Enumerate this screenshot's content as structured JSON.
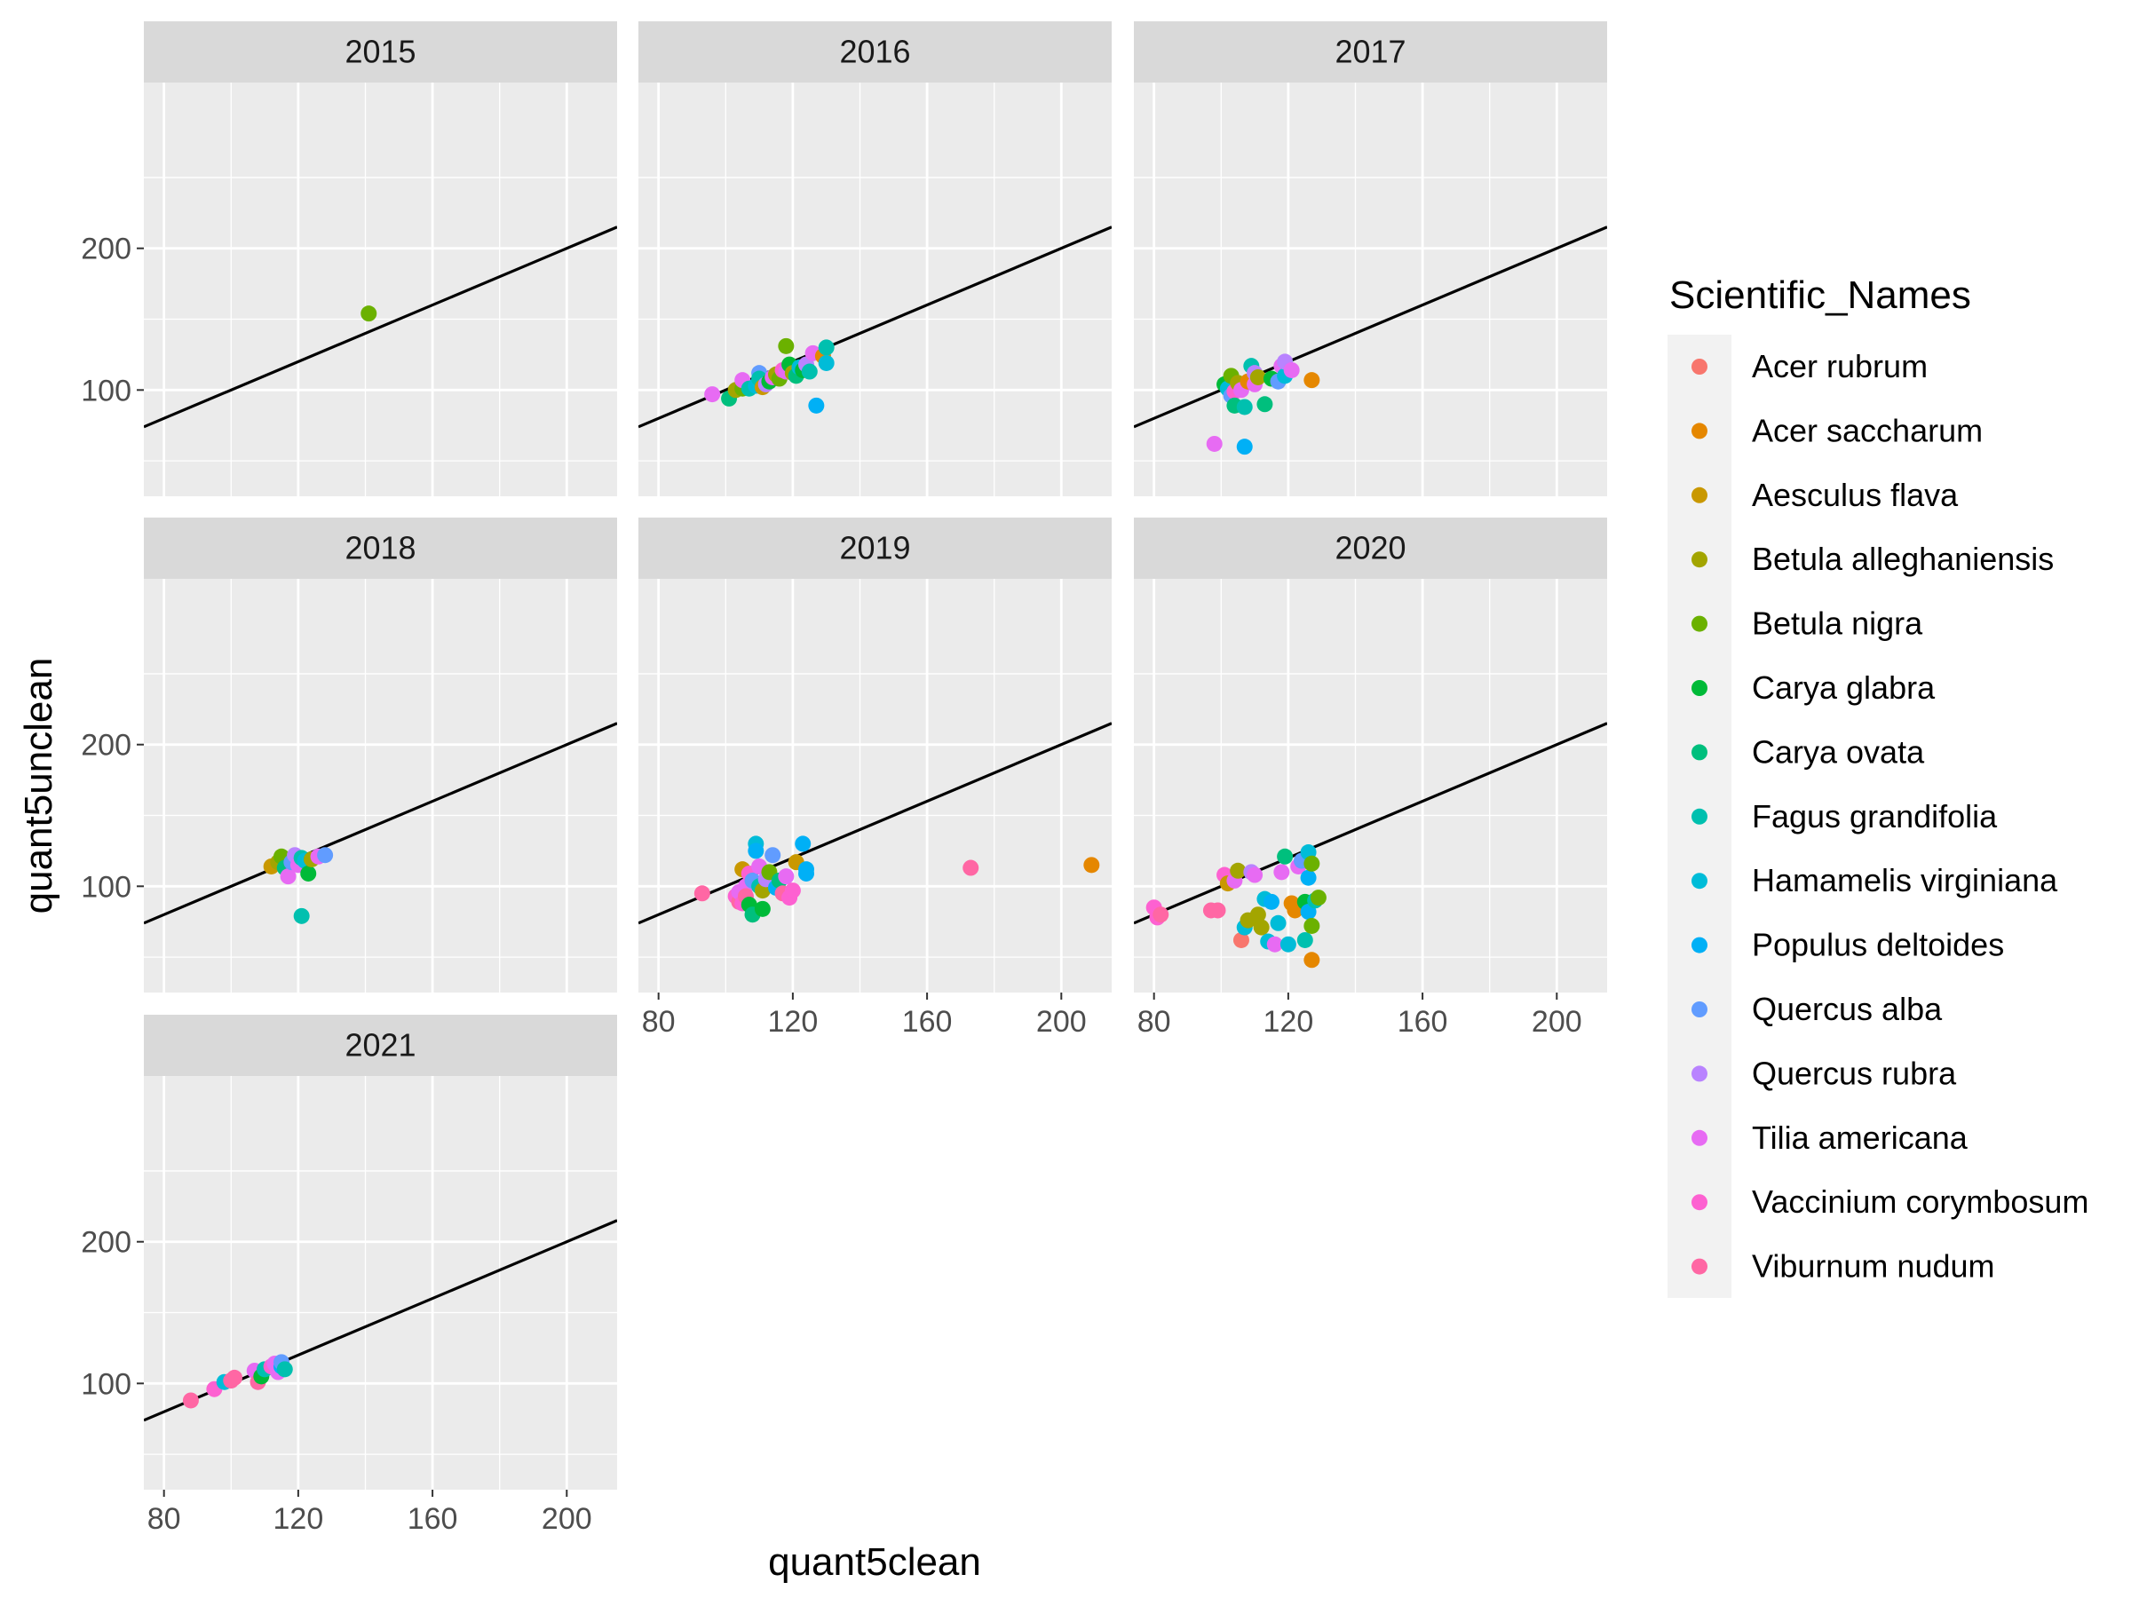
{
  "chart_data": {
    "type": "scatter",
    "facet_variable": "year",
    "panels": [
      "2015",
      "2016",
      "2017",
      "2018",
      "2019",
      "2020",
      "2021"
    ],
    "xlabel": "quant5clean",
    "ylabel": "quant5unclean",
    "xlim": [
      74,
      215
    ],
    "ylim": [
      25,
      317
    ],
    "x_ticks": [
      80,
      120,
      160,
      200
    ],
    "y_ticks": [
      100,
      200
    ],
    "grid": true,
    "reference_line": {
      "type": "identity",
      "slope": 1,
      "intercept": 0,
      "color": "#000000"
    },
    "legend": {
      "title": "Scientific_Names",
      "position": "right",
      "entries": [
        {
          "name": "Acer rubrum",
          "color": "#F8766D"
        },
        {
          "name": "Acer saccharum",
          "color": "#E58700"
        },
        {
          "name": "Aesculus flava",
          "color": "#C99800"
        },
        {
          "name": "Betula alleghaniensis",
          "color": "#A3A500"
        },
        {
          "name": "Betula nigra",
          "color": "#6BB100"
        },
        {
          "name": "Carya glabra",
          "color": "#00BA38"
        },
        {
          "name": "Carya ovata",
          "color": "#00BF7D"
        },
        {
          "name": "Fagus grandifolia",
          "color": "#00C0AF"
        },
        {
          "name": "Hamamelis virginiana",
          "color": "#00BCD8"
        },
        {
          "name": "Populus deltoides",
          "color": "#00B0F6"
        },
        {
          "name": "Quercus alba",
          "color": "#619CFF"
        },
        {
          "name": "Quercus rubra",
          "color": "#B983FF"
        },
        {
          "name": "Tilia americana",
          "color": "#E76BF3"
        },
        {
          "name": "Vaccinium corymbosum",
          "color": "#FD61D1"
        },
        {
          "name": "Viburnum nudum",
          "color": "#FF67A4"
        }
      ]
    },
    "points": {
      "2015": [
        [
          141,
          154,
          4
        ]
      ],
      "2016": [
        [
          96,
          97,
          12
        ],
        [
          101,
          94,
          6
        ],
        [
          103,
          100,
          3
        ],
        [
          105,
          101,
          4
        ],
        [
          105,
          107,
          12
        ],
        [
          107,
          101,
          7
        ],
        [
          109,
          103,
          8
        ],
        [
          110,
          112,
          10
        ],
        [
          110,
          108,
          7
        ],
        [
          111,
          102,
          2
        ],
        [
          112,
          104,
          11
        ],
        [
          113,
          106,
          5
        ],
        [
          114,
          109,
          12
        ],
        [
          115,
          111,
          3
        ],
        [
          116,
          108,
          4
        ],
        [
          117,
          114,
          13
        ],
        [
          118,
          113,
          12
        ],
        [
          118,
          131,
          4
        ],
        [
          119,
          118,
          5
        ],
        [
          120,
          112,
          3
        ],
        [
          121,
          110,
          6
        ],
        [
          122,
          116,
          8
        ],
        [
          123,
          114,
          5
        ],
        [
          124,
          118,
          11
        ],
        [
          125,
          113,
          7
        ],
        [
          126,
          126,
          12
        ],
        [
          127,
          89,
          9
        ],
        [
          129,
          124,
          1
        ],
        [
          130,
          130,
          7
        ],
        [
          130,
          119,
          8
        ]
      ],
      "2017": [
        [
          98,
          62,
          12
        ],
        [
          101,
          104,
          5
        ],
        [
          102,
          101,
          8
        ],
        [
          103,
          96,
          10
        ],
        [
          103,
          110,
          4
        ],
        [
          104,
          99,
          13
        ],
        [
          104,
          89,
          6
        ],
        [
          105,
          105,
          3
        ],
        [
          106,
          100,
          12
        ],
        [
          107,
          88,
          7
        ],
        [
          107,
          60,
          9
        ],
        [
          108,
          106,
          1
        ],
        [
          109,
          117,
          7
        ],
        [
          110,
          104,
          12
        ],
        [
          110,
          112,
          11
        ],
        [
          111,
          109,
          3
        ],
        [
          113,
          90,
          6
        ],
        [
          115,
          108,
          5
        ],
        [
          117,
          106,
          10
        ],
        [
          118,
          117,
          12
        ],
        [
          119,
          110,
          8
        ],
        [
          119,
          120,
          11
        ],
        [
          121,
          114,
          12
        ],
        [
          127,
          107,
          1
        ]
      ],
      "2018": [
        [
          112,
          114,
          2
        ],
        [
          114,
          117,
          3
        ],
        [
          115,
          121,
          4
        ],
        [
          116,
          113,
          6
        ],
        [
          117,
          107,
          12
        ],
        [
          118,
          117,
          10
        ],
        [
          119,
          122,
          11
        ],
        [
          120,
          115,
          12
        ],
        [
          121,
          120,
          7
        ],
        [
          121,
          79,
          7
        ],
        [
          122,
          118,
          8
        ],
        [
          123,
          109,
          5
        ],
        [
          124,
          119,
          3
        ],
        [
          126,
          121,
          12
        ],
        [
          128,
          122,
          10
        ]
      ],
      "2019": [
        [
          93,
          95,
          14
        ],
        [
          103,
          93,
          13
        ],
        [
          104,
          89,
          14
        ],
        [
          104,
          96,
          12
        ],
        [
          105,
          88,
          13
        ],
        [
          105,
          112,
          2
        ],
        [
          106,
          100,
          12
        ],
        [
          106,
          93,
          14
        ],
        [
          107,
          109,
          13
        ],
        [
          107,
          87,
          5
        ],
        [
          108,
          80,
          6
        ],
        [
          108,
          104,
          10
        ],
        [
          109,
          130,
          8
        ],
        [
          109,
          125,
          9
        ],
        [
          110,
          114,
          12
        ],
        [
          110,
          100,
          7
        ],
        [
          111,
          84,
          5
        ],
        [
          111,
          97,
          3
        ],
        [
          112,
          105,
          11
        ],
        [
          113,
          110,
          4
        ],
        [
          114,
          122,
          10
        ],
        [
          115,
          99,
          9
        ],
        [
          116,
          104,
          6
        ],
        [
          117,
          95,
          14
        ],
        [
          118,
          107,
          12
        ],
        [
          119,
          92,
          13
        ],
        [
          120,
          97,
          13
        ],
        [
          121,
          117,
          2
        ],
        [
          123,
          130,
          9
        ],
        [
          124,
          112,
          9
        ],
        [
          124,
          109,
          9
        ],
        [
          173,
          113,
          14
        ],
        [
          209,
          115,
          1
        ]
      ],
      "2020": [
        [
          80,
          85,
          13
        ],
        [
          81,
          78,
          13
        ],
        [
          82,
          80,
          14
        ],
        [
          97,
          83,
          14
        ],
        [
          99,
          83,
          14
        ],
        [
          101,
          108,
          13
        ],
        [
          102,
          102,
          2
        ],
        [
          104,
          104,
          12
        ],
        [
          105,
          111,
          3
        ],
        [
          106,
          62,
          0
        ],
        [
          107,
          71,
          8
        ],
        [
          108,
          76,
          3
        ],
        [
          109,
          110,
          11
        ],
        [
          110,
          108,
          12
        ],
        [
          111,
          80,
          3
        ],
        [
          112,
          71,
          3
        ],
        [
          113,
          91,
          8
        ],
        [
          114,
          61,
          8
        ],
        [
          115,
          89,
          9
        ],
        [
          116,
          59,
          12
        ],
        [
          117,
          74,
          8
        ],
        [
          118,
          110,
          12
        ],
        [
          119,
          121,
          6
        ],
        [
          120,
          59,
          8
        ],
        [
          121,
          88,
          1
        ],
        [
          122,
          83,
          1
        ],
        [
          123,
          114,
          12
        ],
        [
          124,
          118,
          10
        ],
        [
          125,
          62,
          7
        ],
        [
          125,
          89,
          5
        ],
        [
          126,
          82,
          9
        ],
        [
          126,
          106,
          9
        ],
        [
          126,
          124,
          8
        ],
        [
          127,
          116,
          4
        ],
        [
          127,
          48,
          1
        ],
        [
          127,
          72,
          4
        ],
        [
          128,
          90,
          7
        ],
        [
          129,
          92,
          4
        ]
      ],
      "2021": [
        [
          88,
          88,
          14
        ],
        [
          95,
          96,
          13
        ],
        [
          98,
          101,
          8
        ],
        [
          100,
          102,
          14
        ],
        [
          101,
          104,
          14
        ],
        [
          107,
          109,
          12
        ],
        [
          108,
          101,
          14
        ],
        [
          109,
          105,
          5
        ],
        [
          110,
          110,
          7
        ],
        [
          112,
          112,
          13
        ],
        [
          113,
          114,
          12
        ],
        [
          114,
          108,
          12
        ],
        [
          115,
          112,
          9
        ],
        [
          115,
          115,
          10
        ],
        [
          116,
          110,
          7
        ]
      ]
    }
  }
}
